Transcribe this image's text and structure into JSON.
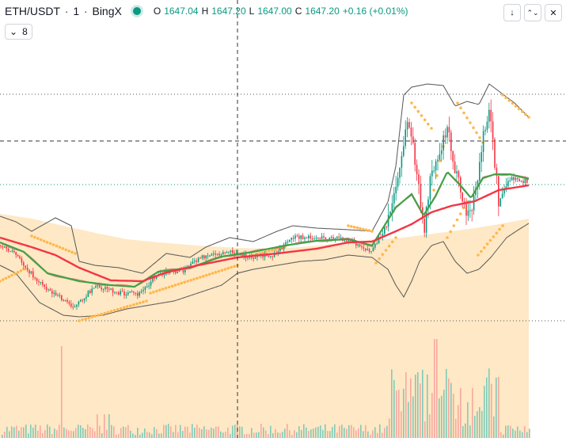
{
  "legend": {
    "symbol": "ETH/USDT",
    "separator": "·",
    "interval": "1",
    "exchange": "BingX",
    "ohlc": {
      "open_label": "O",
      "open": "1647.04",
      "high_label": "H",
      "high": "1647.20",
      "low_label": "L",
      "low": "1647.00",
      "close_label": "C",
      "close": "1647.20",
      "change": "+0.16 (+0.01%)"
    },
    "buttons": [
      {
        "name": "arrow-down-icon",
        "glyph": "↓"
      },
      {
        "name": "collapse-icon",
        "glyph": "⌃⌄"
      },
      {
        "name": "close-icon",
        "glyph": "✕"
      }
    ]
  },
  "indicators_toggle": {
    "icon": "chevron-down-icon",
    "glyph": "⌄",
    "count": "8"
  },
  "colors": {
    "up": "#089981",
    "down": "#f23645",
    "ma_slow": "#f23645",
    "ma_fast": "#43a047",
    "ma_short": "#e57373",
    "bollinger": "#555555",
    "psar": "#ffb74d",
    "cloud": "#ffe0b2"
  }
}
